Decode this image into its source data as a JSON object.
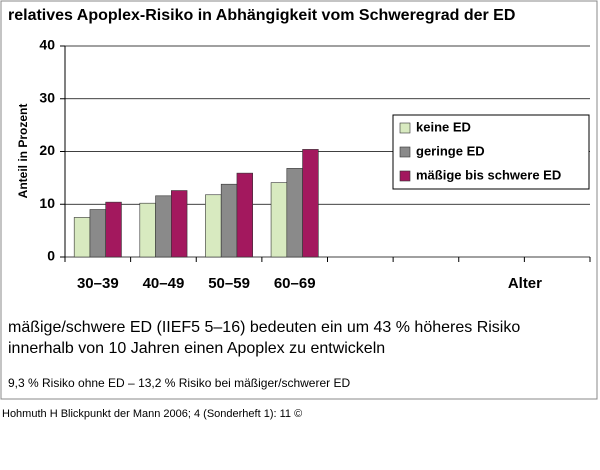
{
  "chart_data": {
    "type": "bar",
    "title": "relatives Apoplex-Risiko in Abhängigkeit vom Schweregrad der ED",
    "y_label": "Anteil in Prozent",
    "x_label": "Alter",
    "categories": [
      "30–39",
      "40–49",
      "50–59",
      "60–69",
      null,
      null,
      null,
      null
    ],
    "series": [
      {
        "name": "keine ED",
        "color": "#d8eac0",
        "values": [
          7.5,
          10.2,
          11.8,
          14.1,
          null,
          null,
          null,
          null
        ]
      },
      {
        "name": "geringe ED",
        "color": "#8a8a8a",
        "values": [
          9,
          11.6,
          13.8,
          16.8,
          null,
          null,
          null,
          null
        ]
      },
      {
        "name": "mäßige bis schwere ED",
        "color": "#a3185e",
        "values": [
          10.4,
          12.6,
          15.9,
          20.4,
          null,
          null,
          null,
          null
        ]
      }
    ],
    "ylim": [
      0,
      40
    ],
    "yticks": [
      0,
      10,
      20,
      30,
      40
    ],
    "grid": true,
    "legend": "right"
  },
  "notes": [
    "mäßige/schwere ED (IIEF5  5–16)  bedeuten ein um 43 % höheres Risiko",
    "innerhalb von 10 Jahren einen Apoplex zu entwickeln"
  ],
  "footnote": "9,3 % Risiko ohne ED – 13,2 % Risiko bei mäßiger/schwerer ED",
  "source": "Hohmuth H Blickpunkt der Mann 2006; 4 (Sonderheft 1): 11 ©"
}
